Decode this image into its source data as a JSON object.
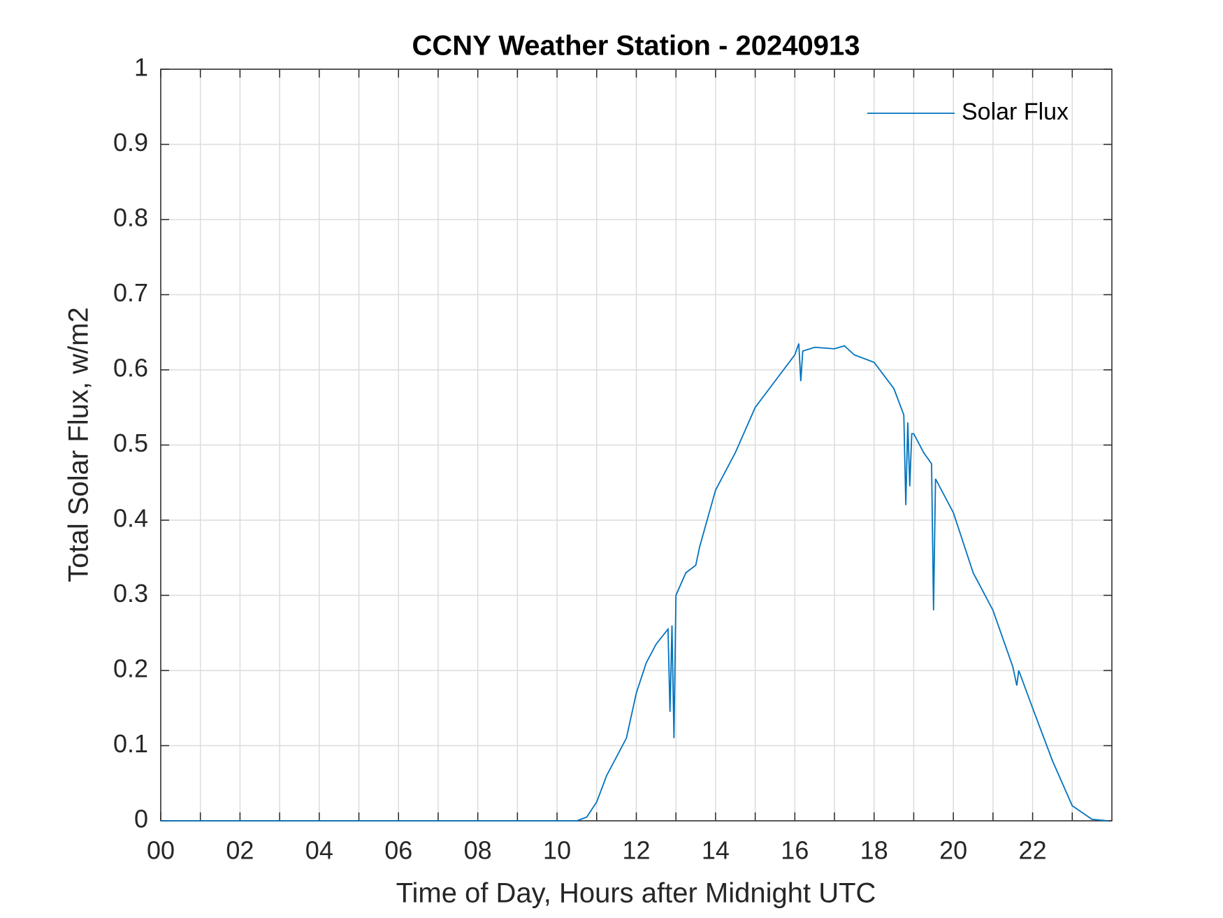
{
  "chart_data": {
    "type": "line",
    "title": "CCNY Weather Station - 20240913",
    "xlabel": "Time of Day, Hours after Midnight UTC",
    "ylabel": "Total Solar Flux, w/m2",
    "x": [
      0,
      2,
      4,
      6,
      8,
      10,
      10.5,
      10.75,
      11,
      11.25,
      11.5,
      11.75,
      12,
      12.25,
      12.5,
      12.8,
      12.85,
      12.9,
      12.95,
      13,
      13.25,
      13.5,
      13.6,
      14,
      14.5,
      15,
      15.5,
      16,
      16.1,
      16.15,
      16.2,
      16.5,
      17,
      17.25,
      17.5,
      18,
      18.5,
      18.75,
      18.8,
      18.85,
      18.9,
      18.95,
      19,
      19.25,
      19.45,
      19.5,
      19.55,
      19.75,
      20,
      20.5,
      21,
      21.5,
      21.6,
      21.65,
      22,
      22.5,
      23,
      23.5,
      23.9
    ],
    "series": [
      {
        "name": "Solar Flux",
        "color": "#0072bd",
        "values": [
          0,
          0,
          0,
          0,
          0,
          0,
          0,
          0.005,
          0.025,
          0.06,
          0.085,
          0.11,
          0.17,
          0.21,
          0.235,
          0.255,
          0.145,
          0.26,
          0.11,
          0.3,
          0.33,
          0.34,
          0.365,
          0.44,
          0.49,
          0.55,
          0.585,
          0.62,
          0.635,
          0.585,
          0.625,
          0.63,
          0.628,
          0.632,
          0.62,
          0.61,
          0.575,
          0.54,
          0.42,
          0.53,
          0.445,
          0.515,
          0.515,
          0.49,
          0.475,
          0.28,
          0.455,
          0.435,
          0.41,
          0.33,
          0.28,
          0.205,
          0.18,
          0.2,
          0.15,
          0.08,
          0.02,
          0.002,
          0
        ]
      }
    ],
    "xlim": [
      0,
      24
    ],
    "ylim": [
      0,
      1
    ],
    "xticks": [
      {
        "value": 0,
        "label": "00"
      },
      {
        "value": 2,
        "label": "02"
      },
      {
        "value": 4,
        "label": "04"
      },
      {
        "value": 6,
        "label": "06"
      },
      {
        "value": 8,
        "label": "08"
      },
      {
        "value": 10,
        "label": "10"
      },
      {
        "value": 12,
        "label": "12"
      },
      {
        "value": 14,
        "label": "14"
      },
      {
        "value": 16,
        "label": "16"
      },
      {
        "value": 18,
        "label": "18"
      },
      {
        "value": 20,
        "label": "20"
      },
      {
        "value": 22,
        "label": "22"
      }
    ],
    "xminorticks": [
      1,
      3,
      5,
      7,
      9,
      11,
      13,
      15,
      17,
      19,
      21,
      23
    ],
    "yticks": [
      0,
      0.1,
      0.2,
      0.3,
      0.4,
      0.5,
      0.6,
      0.7,
      0.8,
      0.9,
      1
    ],
    "grid": true,
    "legend": "northeast"
  }
}
